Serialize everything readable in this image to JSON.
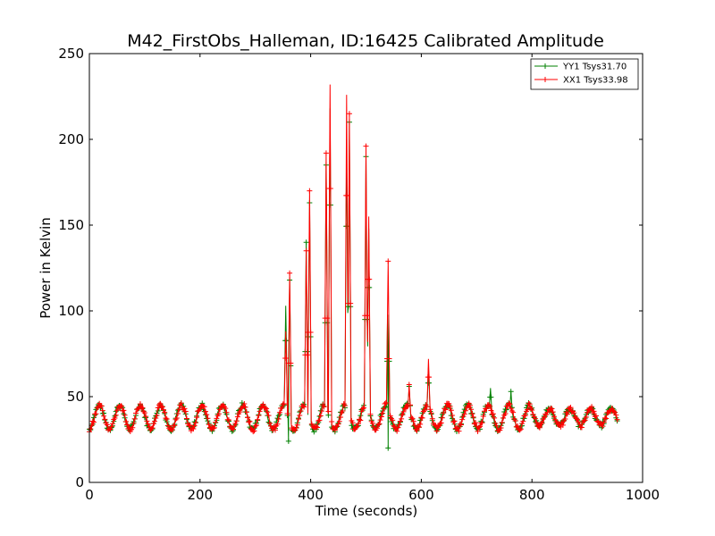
{
  "chart_data": {
    "type": "line",
    "title": "M42_FirstObs_Halleman, ID:16425 Calibrated Amplitude",
    "xlabel": "Time (seconds)",
    "ylabel": "Power in Kelvin",
    "xlim": [
      0,
      1000
    ],
    "ylim": [
      0,
      250
    ],
    "xticks": [
      0,
      200,
      400,
      600,
      800,
      1000
    ],
    "yticks": [
      0,
      50,
      100,
      150,
      200,
      250
    ],
    "x_tick_labels": [
      "0",
      "200",
      "400",
      "600",
      "800",
      "1000"
    ],
    "y_tick_labels": [
      "0",
      "50",
      "100",
      "150",
      "200",
      "250"
    ],
    "grid": false,
    "legend_position": "top-right",
    "marker": "plus",
    "background_level": {
      "x_range": [
        0,
        955
      ],
      "oscillation_period_s": 37,
      "baseline_min": 31,
      "baseline_max": 45,
      "note_values_in_kelvin": true
    },
    "series": [
      {
        "name": "YY1 Tsys31.70",
        "color": "#008000",
        "peaks": [
          {
            "x": 355,
            "y": 103
          },
          {
            "x": 362,
            "y": 118
          },
          {
            "x": 392,
            "y": 140
          },
          {
            "x": 398,
            "y": 163
          },
          {
            "x": 428,
            "y": 185
          },
          {
            "x": 435,
            "y": 218
          },
          {
            "x": 465,
            "y": 200
          },
          {
            "x": 470,
            "y": 210
          },
          {
            "x": 500,
            "y": 190
          },
          {
            "x": 505,
            "y": 148
          },
          {
            "x": 540,
            "y": 125
          },
          {
            "x": 578,
            "y": 56
          },
          {
            "x": 613,
            "y": 67
          },
          {
            "x": 725,
            "y": 55
          },
          {
            "x": 762,
            "y": 53
          }
        ],
        "dips": [
          {
            "x": 360,
            "y": 24
          },
          {
            "x": 540,
            "y": 20
          }
        ]
      },
      {
        "name": "XX1 Tsys33.98",
        "color": "#ff0000",
        "peaks": [
          {
            "x": 355,
            "y": 88
          },
          {
            "x": 362,
            "y": 122
          },
          {
            "x": 392,
            "y": 135
          },
          {
            "x": 398,
            "y": 170
          },
          {
            "x": 428,
            "y": 192
          },
          {
            "x": 435,
            "y": 232
          },
          {
            "x": 465,
            "y": 226
          },
          {
            "x": 470,
            "y": 215
          },
          {
            "x": 500,
            "y": 196
          },
          {
            "x": 505,
            "y": 155
          },
          {
            "x": 540,
            "y": 129
          },
          {
            "x": 578,
            "y": 57
          },
          {
            "x": 613,
            "y": 72
          },
          {
            "x": 950,
            "y": 40
          }
        ]
      }
    ]
  }
}
